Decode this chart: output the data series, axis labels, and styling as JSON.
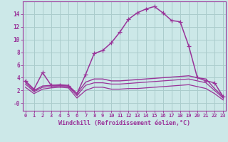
{
  "xlabel": "Windchill (Refroidissement éolien,°C)",
  "bg_color": "#cce8e8",
  "grid_color": "#aacccc",
  "line_color": "#993399",
  "hours": [
    0,
    1,
    2,
    3,
    4,
    5,
    6,
    7,
    8,
    9,
    10,
    11,
    12,
    13,
    14,
    15,
    16,
    17,
    18,
    19,
    20,
    21,
    22,
    23
  ],
  "temp": [
    3.5,
    2.2,
    4.8,
    2.8,
    2.8,
    2.7,
    1.5,
    4.5,
    7.8,
    8.3,
    9.5,
    11.2,
    13.2,
    14.2,
    14.8,
    15.2,
    14.2,
    13.0,
    12.8,
    9.0,
    4.0,
    3.5,
    3.2,
    1.0
  ],
  "windchill": [
    3.3,
    2.0,
    2.7,
    2.8,
    2.9,
    2.8,
    1.5,
    3.3,
    3.8,
    3.8,
    3.5,
    3.5,
    3.6,
    3.7,
    3.8,
    3.9,
    4.0,
    4.1,
    4.2,
    4.3,
    4.0,
    3.8,
    2.3,
    1.0
  ],
  "apparent": [
    3.0,
    1.8,
    2.5,
    2.6,
    2.7,
    2.6,
    1.2,
    2.8,
    3.2,
    3.2,
    3.0,
    3.0,
    3.1,
    3.2,
    3.3,
    3.4,
    3.5,
    3.6,
    3.7,
    3.8,
    3.5,
    3.2,
    2.0,
    0.8
  ],
  "dew": [
    2.5,
    1.5,
    2.2,
    2.4,
    2.5,
    2.4,
    0.8,
    2.0,
    2.5,
    2.5,
    2.2,
    2.2,
    2.3,
    2.3,
    2.4,
    2.5,
    2.6,
    2.7,
    2.8,
    2.9,
    2.6,
    2.3,
    1.5,
    0.5
  ],
  "ylim": [
    -1.2,
    16.0
  ],
  "yticks": [
    0,
    2,
    4,
    6,
    8,
    10,
    12,
    14
  ],
  "ytick_labels": [
    "-0",
    "2",
    "4",
    "6",
    "8",
    "10",
    "12",
    "14"
  ]
}
